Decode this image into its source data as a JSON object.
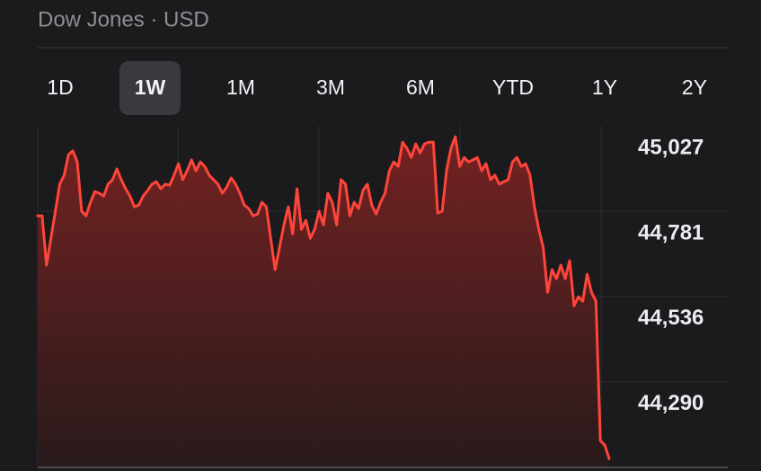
{
  "header": {
    "title": "Dow Jones · USD"
  },
  "tabs": [
    "1D",
    "1W",
    "1M",
    "3M",
    "6M",
    "YTD",
    "1Y",
    "2Y"
  ],
  "selected_tab": 1,
  "chart_data": {
    "type": "line",
    "color": "#ff453a",
    "grid": true,
    "ylim": [
      44044,
      45027
    ],
    "yticks": [
      {
        "value": 45027,
        "label": "45,027"
      },
      {
        "value": 44781,
        "label": "44,781"
      },
      {
        "value": 44536,
        "label": "44,536"
      },
      {
        "value": 44290,
        "label": "44,290"
      }
    ],
    "values": [
      44768,
      44768,
      44626,
      44703,
      44781,
      44859,
      44885,
      44944,
      44955,
      44923,
      44781,
      44768,
      44807,
      44838,
      44833,
      44825,
      44859,
      44872,
      44903,
      44872,
      44846,
      44825,
      44794,
      44799,
      44825,
      44841,
      44859,
      44866,
      44846,
      44859,
      44856,
      44885,
      44918,
      44872,
      44898,
      44929,
      44898,
      44923,
      44910,
      44885,
      44872,
      44859,
      44833,
      44851,
      44877,
      44859,
      44833,
      44799,
      44789,
      44768,
      44773,
      44807,
      44794,
      44703,
      44613,
      44677,
      44742,
      44794,
      44716,
      44846,
      44729,
      44755,
      44703,
      44729,
      44781,
      44742,
      44833,
      44807,
      44742,
      44872,
      44859,
      44768,
      44807,
      44789,
      44841,
      44859,
      44799,
      44773,
      44807,
      44833,
      44898,
      44923,
      44910,
      44980,
      44962,
      44936,
      44975,
      44949,
      44975,
      44980,
      44980,
      44776,
      44781,
      44898,
      44962,
      44996,
      44910,
      44936,
      44923,
      44929,
      44936,
      44898,
      44918,
      44872,
      44885,
      44859,
      44866,
      44872,
      44923,
      44936,
      44910,
      44918,
      44885,
      44794,
      44729,
      44677,
      44548,
      44613,
      44587,
      44626,
      44587,
      44639,
      44509,
      44535,
      44522,
      44600,
      44548,
      44522,
      44121,
      44108,
      44069
    ]
  }
}
